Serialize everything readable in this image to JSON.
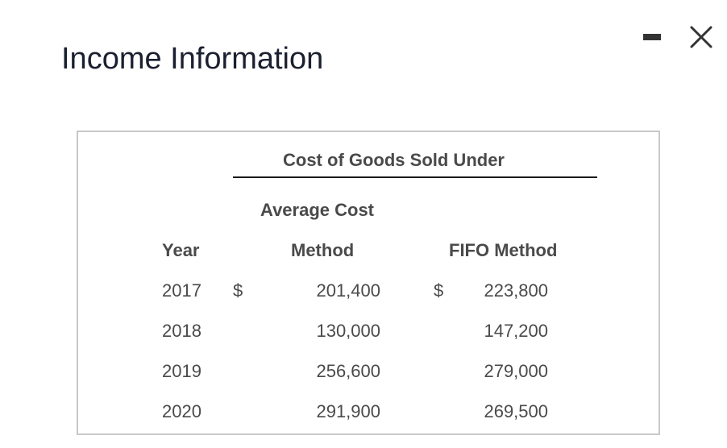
{
  "dialog": {
    "title": "Income Information"
  },
  "controls": {
    "minimize_icon": "minimize-icon",
    "close_icon": "close-icon"
  },
  "table": {
    "group_header": "Cost of Goods Sold Under",
    "avg_header_line1": "Average Cost",
    "avg_header_line2": "Method",
    "year_header": "Year",
    "fifo_header": "FIFO Method",
    "currency_symbol": "$",
    "rows": [
      {
        "year": "2017",
        "avg_cost": "201,400",
        "fifo": "223,800",
        "show_currency": true
      },
      {
        "year": "2018",
        "avg_cost": "130,000",
        "fifo": "147,200",
        "show_currency": false
      },
      {
        "year": "2019",
        "avg_cost": "256,600",
        "fifo": "279,000",
        "show_currency": false
      },
      {
        "year": "2020",
        "avg_cost": "291,900",
        "fifo": "269,500",
        "show_currency": false
      }
    ]
  }
}
